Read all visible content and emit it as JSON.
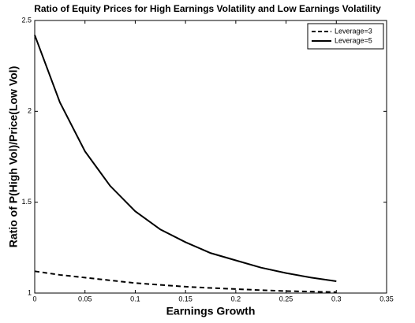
{
  "chart_data": {
    "type": "line",
    "title": "Ratio of Equity Prices for High Earnings Volatility and Low Earnings Volatility",
    "x_label": "Earnings Growth",
    "y_label": "Ratio of P(High Vol)/Price(Low Vol)",
    "x": [
      0,
      0.025,
      0.05,
      0.075,
      0.1,
      0.125,
      0.15,
      0.175,
      0.2,
      0.225,
      0.25,
      0.275,
      0.3
    ],
    "series": [
      {
        "name": "Leverage=3",
        "color": "#000000",
        "style": "dashed",
        "values": [
          1.12,
          1.1,
          1.085,
          1.07,
          1.055,
          1.045,
          1.035,
          1.028,
          1.022,
          1.016,
          1.011,
          1.008,
          1.005
        ]
      },
      {
        "name": "Leverage=5",
        "color": "#000000",
        "style": "solid",
        "values": [
          2.42,
          2.05,
          1.78,
          1.59,
          1.45,
          1.35,
          1.28,
          1.22,
          1.18,
          1.14,
          1.11,
          1.085,
          1.065
        ]
      }
    ],
    "xlim": [
      0,
      0.35
    ],
    "xticks": [
      0,
      0.05,
      0.1,
      0.15,
      0.2,
      0.25,
      0.3,
      0.35
    ],
    "ylim": [
      1,
      2.5
    ],
    "yticks": [
      1,
      1.5,
      2,
      2.5
    ],
    "legend": "upper right",
    "grid": false
  }
}
